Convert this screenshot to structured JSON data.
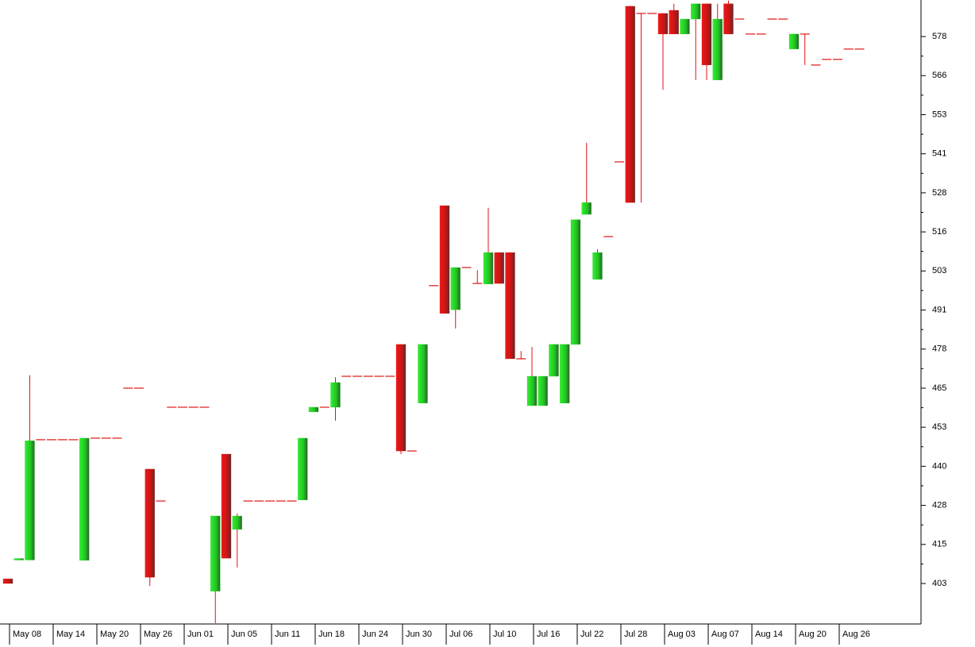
{
  "chart_data": {
    "type": "candlestick",
    "up_color": "#1fd11f",
    "down_color": "#e01414",
    "categories": [
      "May 08",
      null,
      null,
      null,
      "May 14",
      null,
      null,
      null,
      "May 20",
      null,
      null,
      null,
      "May 26",
      null,
      null,
      null,
      "Jun 01",
      null,
      null,
      null,
      "Jun 05",
      null,
      null,
      null,
      "Jun 11",
      null,
      null,
      null,
      "Jun 18",
      null,
      null,
      null,
      "Jun 24",
      null,
      null,
      null,
      "Jun 30",
      null,
      null,
      null,
      "Jul 06",
      null,
      null,
      null,
      "Jul 10",
      null,
      null,
      null,
      "Jul 16",
      null,
      null,
      null,
      "Jul 22",
      null,
      null,
      null,
      "Jul 28",
      null,
      null,
      null,
      "Aug 03",
      null,
      null,
      null,
      "Aug 07",
      null,
      null,
      null,
      "Aug 14",
      null,
      null,
      null,
      "Aug 20",
      null,
      null,
      null,
      "Aug 26",
      null,
      null
    ],
    "open": [
      404.5,
      410.5,
      410.5,
      449,
      449,
      449,
      449,
      410.4,
      449.5,
      449.5,
      449.5,
      465.5,
      465.5,
      439.6,
      429.4,
      459.4,
      459.4,
      459.4,
      459.4,
      400.5,
      444.4,
      420.3,
      429.4,
      429.4,
      429.4,
      429.4,
      429.4,
      429.7,
      457.9,
      459.4,
      459.4,
      469.3,
      469.3,
      469.3,
      469.3,
      469.3,
      479.5,
      445.4,
      460.7,
      498.3,
      523.9,
      490.6,
      504.1,
      499,
      498.8,
      508.9,
      508.9,
      474.9,
      459.9,
      459.9,
      469.3,
      460.7,
      479.5,
      521.1,
      500.3,
      514,
      537.9,
      587.7,
      585.4,
      585.4,
      585.4,
      586.4,
      578.8,
      583.6,
      588.5,
      564.1,
      588.5,
      583.6,
      578.8,
      578.8,
      583.6,
      583.6,
      574,
      578.8,
      568.9,
      570.7,
      570.7,
      574,
      574
    ],
    "high": [
      404.5,
      411,
      469.6,
      449,
      449,
      449,
      449,
      449.5,
      449.5,
      449.5,
      449.5,
      465.5,
      465.5,
      439.6,
      429.4,
      459.4,
      459.4,
      459.4,
      459.4,
      424.6,
      444.4,
      425.4,
      429.4,
      429.4,
      429.4,
      429.4,
      429.4,
      449.5,
      459.4,
      459.4,
      469,
      469.3,
      469.3,
      469.3,
      469.3,
      469.3,
      479.5,
      445.4,
      479.5,
      498.3,
      523.9,
      504.1,
      504.1,
      503.3,
      523.2,
      508.9,
      508.9,
      477.4,
      478.7,
      469.3,
      479.5,
      479.5,
      519.4,
      544,
      510,
      514,
      537.9,
      587.7,
      585.4,
      585.4,
      585.4,
      588.5,
      583.6,
      588.5,
      588.5,
      588.5,
      589.5,
      583.6,
      578.8,
      578.8,
      583.6,
      583.6,
      578.8,
      578.8,
      568.9,
      570.7,
      570.7,
      574,
      574
    ],
    "low": [
      403,
      410.5,
      410.5,
      449,
      449,
      449,
      449,
      410.4,
      449.5,
      449.5,
      449.5,
      465.5,
      465.5,
      402.2,
      429.4,
      459.4,
      459.4,
      459.4,
      459.4,
      390.3,
      411.1,
      408.1,
      429.4,
      429.4,
      429.4,
      429.4,
      429.4,
      429.7,
      457.9,
      459.4,
      455.1,
      469.3,
      469.3,
      469.3,
      469.3,
      469.3,
      444.4,
      445.4,
      460.7,
      498.3,
      489.4,
      484.6,
      504.1,
      499,
      498.8,
      499,
      474.9,
      474.9,
      459.9,
      459.9,
      469.3,
      460.7,
      479.5,
      521.1,
      500.3,
      514,
      537.9,
      524.9,
      524.9,
      585.4,
      561,
      578.8,
      578.8,
      564.1,
      564.1,
      564.1,
      578.8,
      583.6,
      578.8,
      578.8,
      583.6,
      583.6,
      574,
      568.9,
      568.9,
      570.7,
      570.7,
      574,
      574
    ],
    "close": [
      403,
      411,
      448.7,
      449,
      449,
      449,
      449,
      449.5,
      449.5,
      449.5,
      449.5,
      465.5,
      465.5,
      405,
      429.4,
      459.4,
      459.4,
      459.4,
      459.4,
      424.6,
      411.1,
      424.6,
      429.4,
      429.4,
      429.4,
      429.4,
      429.4,
      449.5,
      459.4,
      459.4,
      467.3,
      469.3,
      469.3,
      469.3,
      469.3,
      469.3,
      445.4,
      445.4,
      479.5,
      498.3,
      489.4,
      504.1,
      504.1,
      499,
      508.9,
      499,
      474.9,
      474.9,
      469.3,
      469.3,
      479.5,
      479.5,
      519.4,
      524.9,
      508.9,
      514,
      537.9,
      524.9,
      585.4,
      585.4,
      578.8,
      578.8,
      583.6,
      588.5,
      568.9,
      583.6,
      578.8,
      583.6,
      578.8,
      578.8,
      583.6,
      583.6,
      578.8,
      578.8,
      568.9,
      570.7,
      570.7,
      574,
      574
    ],
    "ylim": [
      390.3,
      589.7
    ],
    "yticks": [
      403,
      {
        "value": 415.5,
        "label": "415"
      },
      428,
      {
        "value": 440.5,
        "label": "440"
      },
      453,
      {
        "value": 465.5,
        "label": "465"
      },
      478,
      {
        "value": 490.5,
        "label": "491"
      },
      503,
      {
        "value": 515.5,
        "label": "516"
      },
      528,
      {
        "value": 540.5,
        "label": "541"
      },
      553,
      {
        "value": 565.5,
        "label": "566"
      },
      578
    ]
  }
}
